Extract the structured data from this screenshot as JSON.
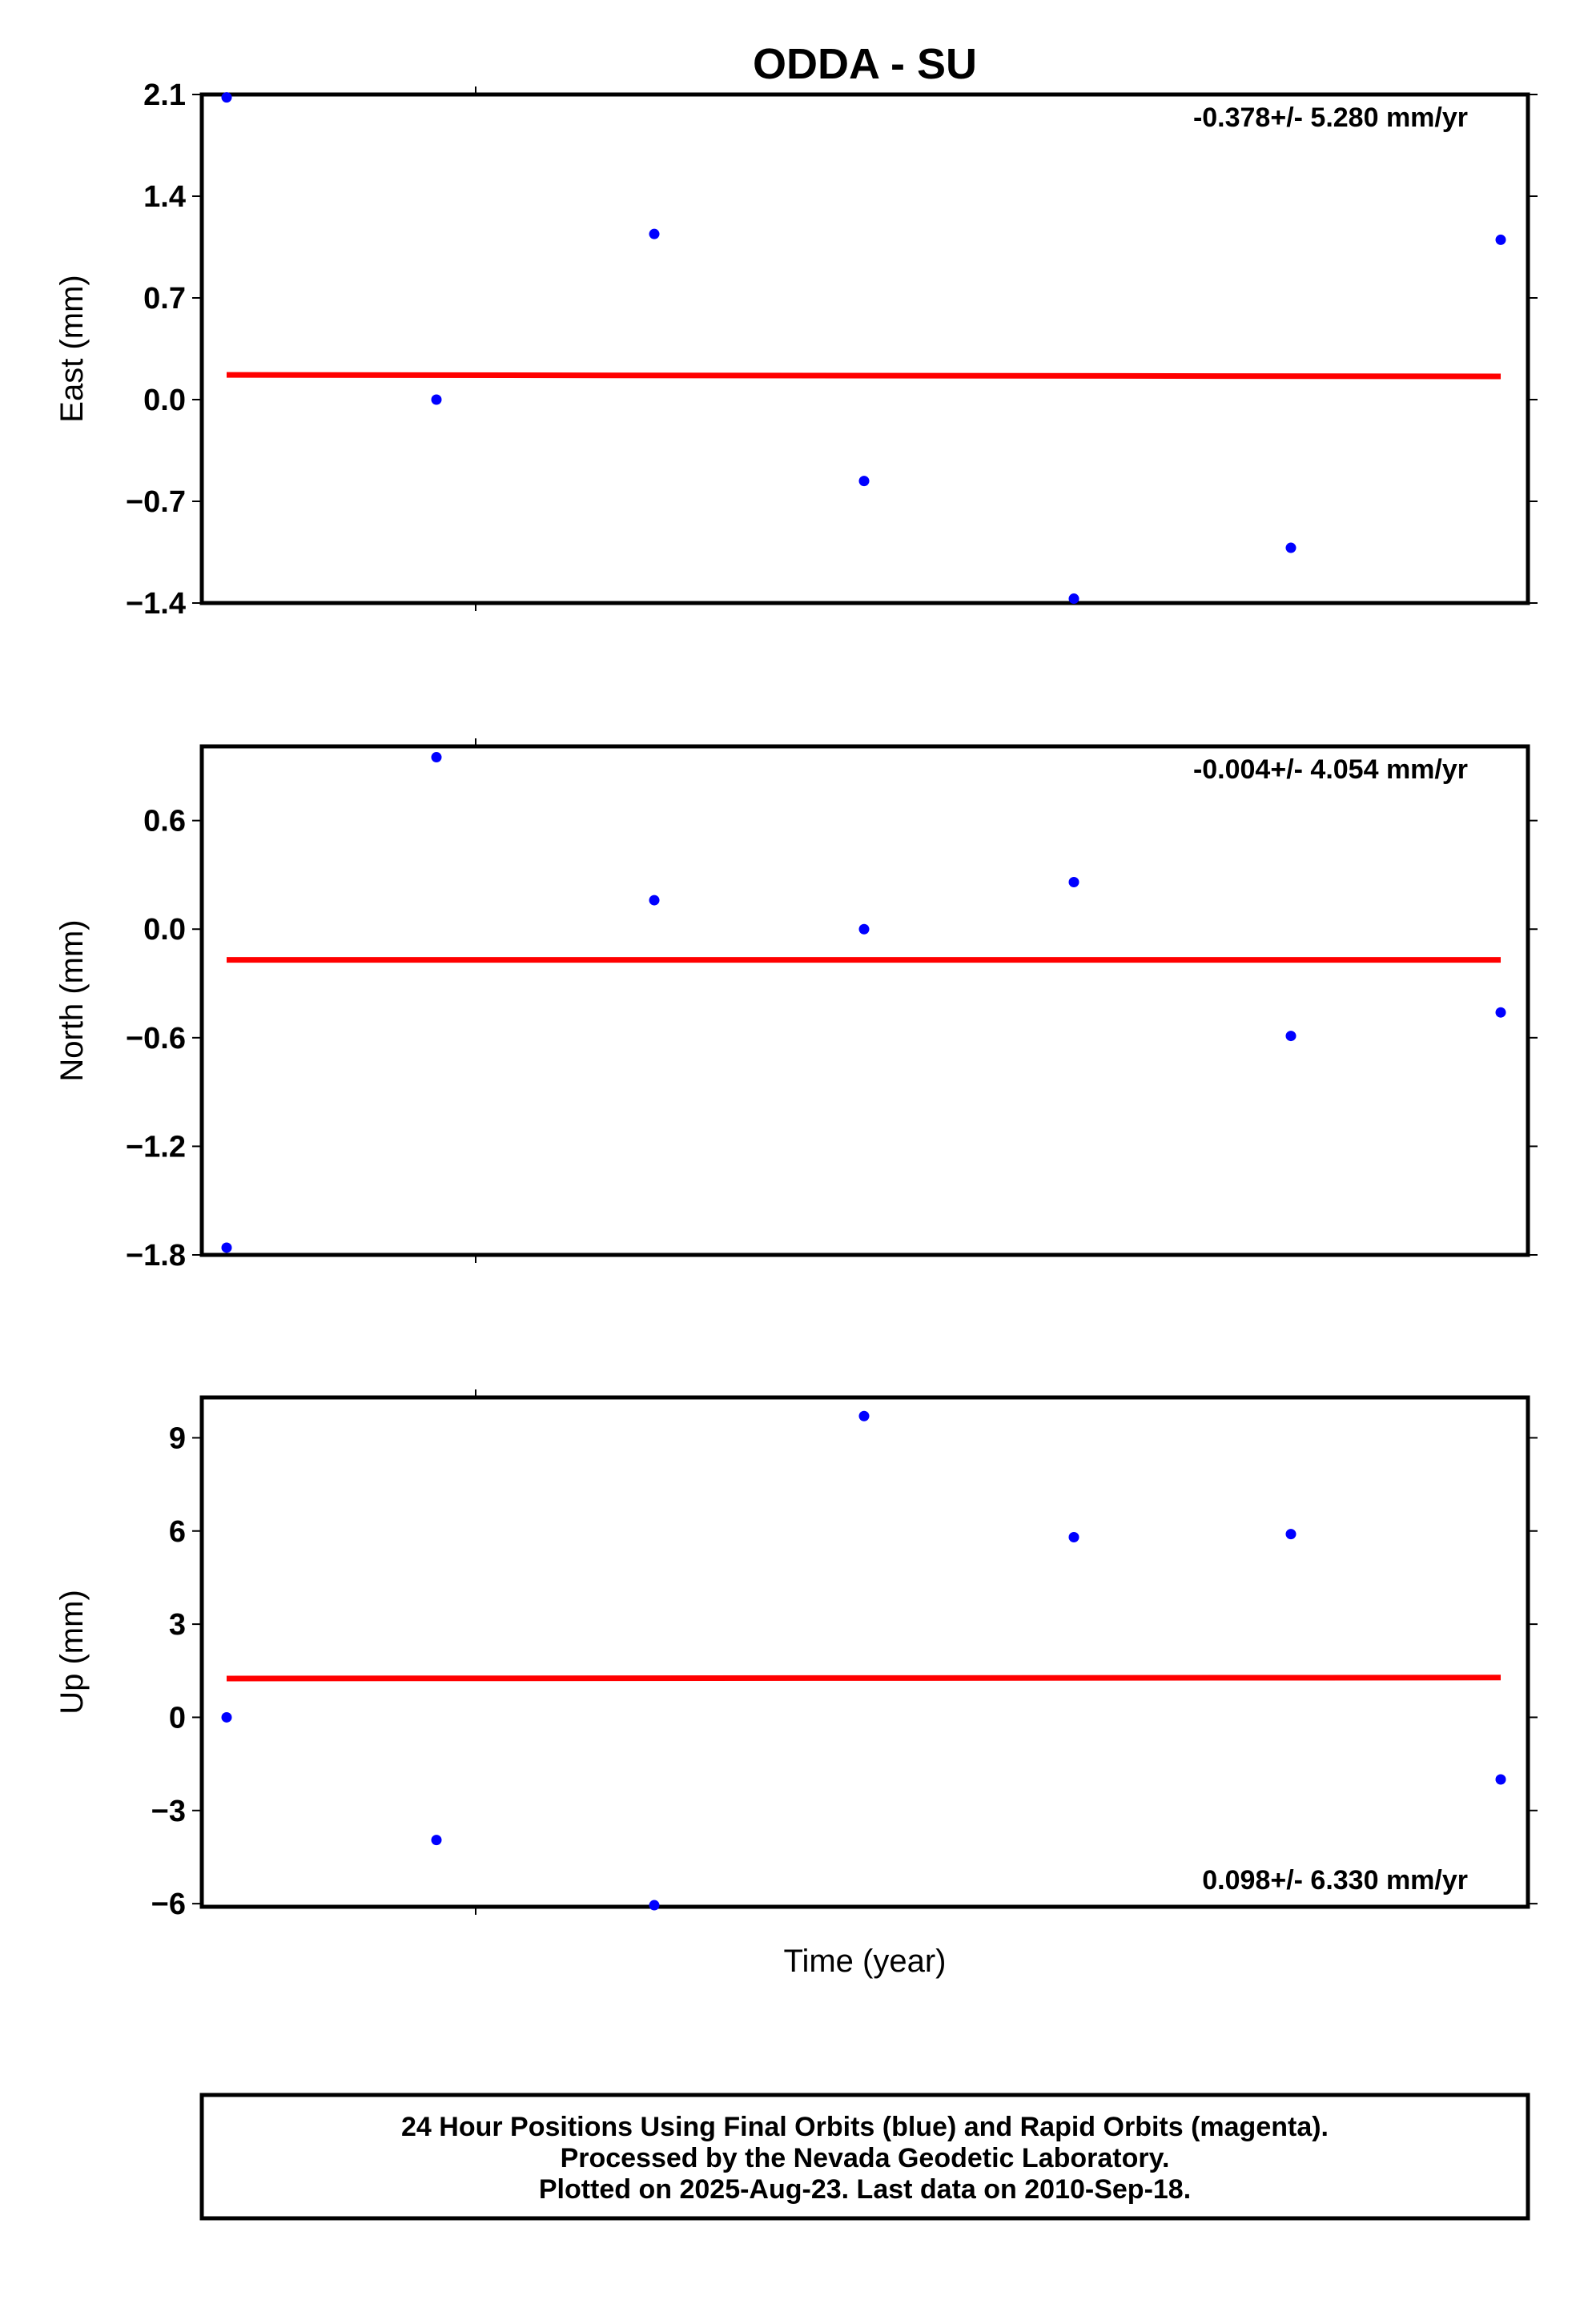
{
  "title": "ODDA - SU",
  "x_label": "Time (year)",
  "colors": {
    "data_points": "#0000ff",
    "trend_line": "#ff0000",
    "frame": "#000000"
  },
  "chart_data": [
    {
      "type": "scatter",
      "ylabel": "East (mm)",
      "ylim": [
        -1.4,
        2.1
      ],
      "y_ticks": [
        "2.1",
        "1.4",
        "0.7",
        "0.0",
        "−0.7",
        "−1.4"
      ],
      "y_tick_values": [
        2.1,
        1.4,
        0.7,
        0.0,
        -0.7,
        -1.4
      ],
      "rate_text": "-0.378+/- 5.280 mm/yr",
      "rate_position": "top-right",
      "grid": false,
      "x": [
        0,
        1,
        2,
        3,
        4,
        5,
        6
      ],
      "values": [
        2.08,
        0.0,
        1.14,
        -0.56,
        -1.37,
        -1.02,
        1.1
      ],
      "trend": [
        0.17,
        0.16
      ]
    },
    {
      "type": "scatter",
      "ylabel": "North (mm)",
      "ylim": [
        -1.8,
        1.01
      ],
      "y_ticks": [
        "0.6",
        "0.0",
        "−0.6",
        "−1.2",
        "−1.8"
      ],
      "y_tick_values": [
        0.6,
        0.0,
        -0.6,
        -1.2,
        -1.8
      ],
      "rate_text": "-0.004+/- 4.054 mm/yr",
      "rate_position": "top-right",
      "grid": false,
      "x": [
        0,
        1,
        2,
        3,
        4,
        5,
        6
      ],
      "values": [
        -1.76,
        0.95,
        0.16,
        0.0,
        0.26,
        -0.59,
        -0.46
      ],
      "trend": [
        -0.17,
        -0.17
      ]
    },
    {
      "type": "scatter",
      "ylabel": "Up (mm)",
      "ylim": [
        -6.1,
        10.3
      ],
      "y_ticks": [
        "9",
        "6",
        "3",
        "0",
        "−3",
        "−6"
      ],
      "y_tick_values": [
        9,
        6,
        3,
        0,
        -3,
        -6
      ],
      "rate_text": "0.098+/- 6.330 mm/yr",
      "rate_position": "bottom-right",
      "grid": false,
      "x": [
        0,
        1,
        2,
        3,
        4,
        5,
        6
      ],
      "values": [
        0.0,
        -3.95,
        -6.05,
        9.7,
        5.8,
        5.9,
        -2.0
      ],
      "trend": [
        1.25,
        1.28
      ]
    }
  ],
  "footer": {
    "line1": "24 Hour Positions Using Final Orbits (blue) and Rapid Orbits (magenta).",
    "line2": "Processed by the Nevada Geodetic Laboratory.",
    "line3": "Plotted on 2025-Aug-23. Last data on 2010-Sep-18."
  }
}
